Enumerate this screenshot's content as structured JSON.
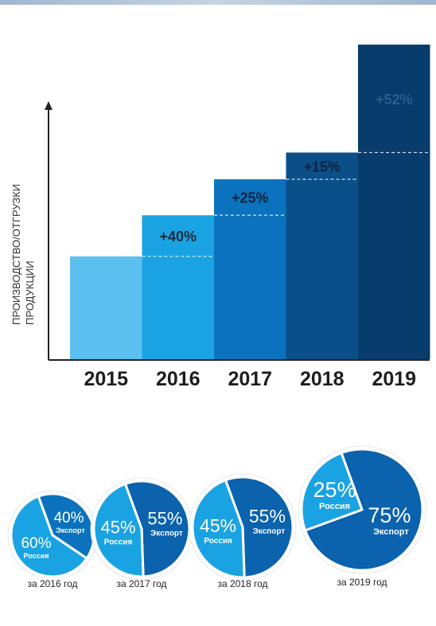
{
  "chart_data": [
    {
      "type": "bar",
      "categories": [
        "2015",
        "2016",
        "2017",
        "2018",
        "2019"
      ],
      "values": [
        100,
        140,
        175,
        201,
        306
      ],
      "growth_labels": [
        "",
        "+40%",
        "+25%",
        "+15%",
        "+52%"
      ],
      "ylabel": "ПРОИЗВОДСТВО/ОТГРУЗКИ ПРОДУКЦИИ",
      "ylim": [
        0,
        330
      ],
      "grid": false,
      "colors": [
        "#5bc0ee",
        "#1aa3e2",
        "#0b72bd",
        "#0a4f88",
        "#073c6c"
      ]
    },
    {
      "type": "pie",
      "charts": [
        {
          "caption": "за 2016 год",
          "slices": [
            {
              "label": "Экспорт",
              "pct_text": "40%",
              "value": 40,
              "color": "#0b72bd"
            },
            {
              "label": "Россия",
              "pct_text": "60%",
              "value": 60,
              "color": "#1aa3e2"
            }
          ]
        },
        {
          "caption": "за 2017 год",
          "slices": [
            {
              "label": "Экспорт",
              "pct_text": "55%",
              "value": 55,
              "color": "#0b62ad"
            },
            {
              "label": "Россия",
              "pct_text": "45%",
              "value": 45,
              "color": "#1aa3e2"
            }
          ]
        },
        {
          "caption": "за 2018 год",
          "slices": [
            {
              "label": "Экспорт",
              "pct_text": "55%",
              "value": 55,
              "color": "#0b62ad"
            },
            {
              "label": "Россия",
              "pct_text": "45%",
              "value": 45,
              "color": "#1aa3e2"
            }
          ]
        },
        {
          "caption": "за 2019 год",
          "slices": [
            {
              "label": "Экспорт",
              "pct_text": "75%",
              "value": 75,
              "color": "#0b62ad"
            },
            {
              "label": "Россия",
              "pct_text": "25%",
              "value": 25,
              "color": "#1aa3e2"
            }
          ]
        }
      ]
    }
  ]
}
